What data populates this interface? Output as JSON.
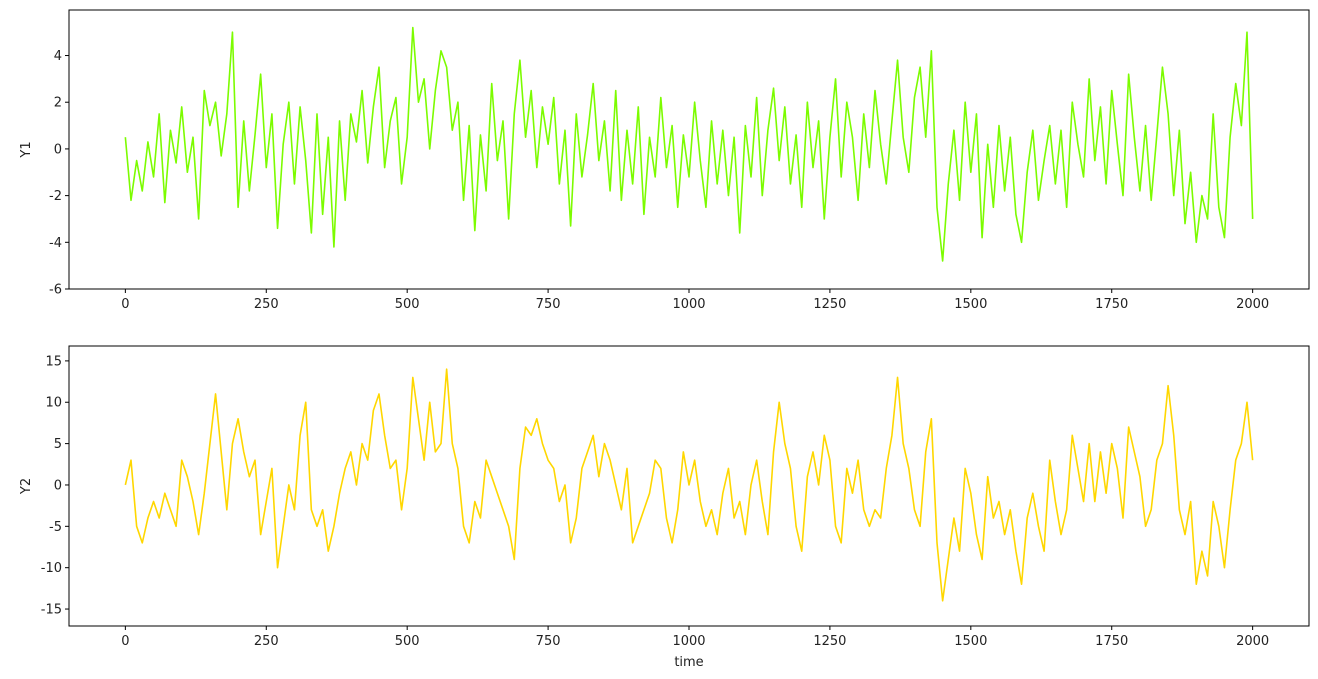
{
  "chart_data": [
    {
      "type": "line",
      "ylabel": "Y1",
      "color": "#7cfc00",
      "xlim": [
        -100,
        2100
      ],
      "ylim": [
        -6.0,
        5.95
      ],
      "xticks": [
        0,
        250,
        500,
        750,
        1000,
        1250,
        1500,
        1750,
        2000
      ],
      "yticks": [
        -6,
        -4,
        -2,
        0,
        2,
        4
      ],
      "x": [
        0,
        10,
        20,
        30,
        40,
        50,
        60,
        70,
        80,
        90,
        100,
        110,
        120,
        130,
        140,
        150,
        160,
        170,
        180,
        190,
        200,
        210,
        220,
        230,
        240,
        250,
        260,
        270,
        280,
        290,
        300,
        310,
        320,
        330,
        340,
        350,
        360,
        370,
        380,
        390,
        400,
        410,
        420,
        430,
        440,
        450,
        460,
        470,
        480,
        490,
        500,
        510,
        520,
        530,
        540,
        550,
        560,
        570,
        580,
        590,
        600,
        610,
        620,
        630,
        640,
        650,
        660,
        670,
        680,
        690,
        700,
        710,
        720,
        730,
        740,
        750,
        760,
        770,
        780,
        790,
        800,
        810,
        820,
        830,
        840,
        850,
        860,
        870,
        880,
        890,
        900,
        910,
        920,
        930,
        940,
        950,
        960,
        970,
        980,
        990,
        1000,
        1010,
        1020,
        1030,
        1040,
        1050,
        1060,
        1070,
        1080,
        1090,
        1100,
        1110,
        1120,
        1130,
        1140,
        1150,
        1160,
        1170,
        1180,
        1190,
        1200,
        1210,
        1220,
        1230,
        1240,
        1250,
        1260,
        1270,
        1280,
        1290,
        1300,
        1310,
        1320,
        1330,
        1340,
        1350,
        1360,
        1370,
        1380,
        1390,
        1400,
        1410,
        1420,
        1430,
        1440,
        1450,
        1460,
        1470,
        1480,
        1490,
        1500,
        1510,
        1520,
        1530,
        1540,
        1550,
        1560,
        1570,
        1580,
        1590,
        1600,
        1610,
        1620,
        1630,
        1640,
        1650,
        1660,
        1670,
        1680,
        1690,
        1700,
        1710,
        1720,
        1730,
        1740,
        1750,
        1760,
        1770,
        1780,
        1790,
        1800,
        1810,
        1820,
        1830,
        1840,
        1850,
        1860,
        1870,
        1880,
        1890,
        1900,
        1910,
        1920,
        1930,
        1940,
        1950,
        1960,
        1970,
        1980,
        1990,
        2000
      ],
      "values": [
        0.5,
        -2.2,
        -0.5,
        -1.8,
        0.3,
        -1.2,
        1.5,
        -2.3,
        0.8,
        -0.6,
        1.8,
        -1.0,
        0.5,
        -3.0,
        2.5,
        1.0,
        2.0,
        -0.3,
        1.5,
        5.0,
        -2.5,
        1.2,
        -1.8,
        0.6,
        3.2,
        -0.8,
        1.5,
        -3.4,
        0.2,
        2.0,
        -1.5,
        1.8,
        -0.5,
        -3.6,
        1.5,
        -2.8,
        0.5,
        -4.2,
        1.2,
        -2.2,
        1.5,
        0.3,
        2.5,
        -0.6,
        1.8,
        3.5,
        -0.8,
        1.2,
        2.2,
        -1.5,
        0.5,
        5.2,
        2.0,
        3.0,
        0.0,
        2.5,
        4.2,
        3.5,
        0.8,
        2.0,
        -2.2,
        1.0,
        -3.5,
        0.6,
        -1.8,
        2.8,
        -0.5,
        1.2,
        -3.0,
        1.5,
        3.8,
        0.5,
        2.5,
        -0.8,
        1.8,
        0.2,
        2.2,
        -1.5,
        0.8,
        -3.3,
        1.5,
        -1.2,
        0.6,
        2.8,
        -0.5,
        1.2,
        -1.8,
        2.5,
        -2.2,
        0.8,
        -1.5,
        1.8,
        -2.8,
        0.5,
        -1.2,
        2.2,
        -0.8,
        1.0,
        -2.5,
        0.6,
        -1.2,
        2.0,
        -0.5,
        -2.5,
        1.2,
        -1.5,
        0.8,
        -2.0,
        0.5,
        -3.6,
        1.0,
        -1.2,
        2.2,
        -2.0,
        0.8,
        2.6,
        -0.5,
        1.8,
        -1.5,
        0.6,
        -2.5,
        2.0,
        -0.8,
        1.2,
        -3.0,
        0.5,
        3.0,
        -1.2,
        2.0,
        0.5,
        -2.2,
        1.5,
        -0.8,
        2.5,
        0.2,
        -1.5,
        1.2,
        3.8,
        0.5,
        -1.0,
        2.2,
        3.5,
        0.5,
        4.2,
        -2.5,
        -4.8,
        -1.5,
        0.8,
        -2.2,
        2.0,
        -1.0,
        1.5,
        -3.8,
        0.2,
        -2.5,
        1.0,
        -1.8,
        0.5,
        -2.8,
        -4.0,
        -1.0,
        0.8,
        -2.2,
        -0.5,
        1.0,
        -1.5,
        0.8,
        -2.5,
        2.0,
        0.2,
        -1.2,
        3.0,
        -0.5,
        1.8,
        -1.5,
        2.5,
        0.2,
        -2.0,
        3.2,
        0.5,
        -1.8,
        1.0,
        -2.2,
        0.6,
        3.5,
        1.5,
        -2.0,
        0.8,
        -3.2,
        -1.0,
        -4.0,
        -2.0,
        -3.0,
        1.5,
        -2.5,
        -3.8,
        0.5,
        2.8,
        1.0,
        5.0,
        -3.0
      ]
    },
    {
      "type": "line",
      "ylabel": "Y2",
      "xlabel": "time",
      "color": "#ffd700",
      "xlim": [
        -100,
        2100
      ],
      "ylim": [
        -17.05,
        16.8
      ],
      "xticks": [
        0,
        250,
        500,
        750,
        1000,
        1250,
        1500,
        1750,
        2000
      ],
      "yticks": [
        -15,
        -10,
        -5,
        0,
        5,
        10,
        15
      ],
      "x": [
        0,
        10,
        20,
        30,
        40,
        50,
        60,
        70,
        80,
        90,
        100,
        110,
        120,
        130,
        140,
        150,
        160,
        170,
        180,
        190,
        200,
        210,
        220,
        230,
        240,
        250,
        260,
        270,
        280,
        290,
        300,
        310,
        320,
        330,
        340,
        350,
        360,
        370,
        380,
        390,
        400,
        410,
        420,
        430,
        440,
        450,
        460,
        470,
        480,
        490,
        500,
        510,
        520,
        530,
        540,
        550,
        560,
        570,
        580,
        590,
        600,
        610,
        620,
        630,
        640,
        650,
        660,
        670,
        680,
        690,
        700,
        710,
        720,
        730,
        740,
        750,
        760,
        770,
        780,
        790,
        800,
        810,
        820,
        830,
        840,
        850,
        860,
        870,
        880,
        890,
        900,
        910,
        920,
        930,
        940,
        950,
        960,
        970,
        980,
        990,
        1000,
        1010,
        1020,
        1030,
        1040,
        1050,
        1060,
        1070,
        1080,
        1090,
        1100,
        1110,
        1120,
        1130,
        1140,
        1150,
        1160,
        1170,
        1180,
        1190,
        1200,
        1210,
        1220,
        1230,
        1240,
        1250,
        1260,
        1270,
        1280,
        1290,
        1300,
        1310,
        1320,
        1330,
        1340,
        1350,
        1360,
        1370,
        1380,
        1390,
        1400,
        1410,
        1420,
        1430,
        1440,
        1450,
        1460,
        1470,
        1480,
        1490,
        1500,
        1510,
        1520,
        1530,
        1540,
        1550,
        1560,
        1570,
        1580,
        1590,
        1600,
        1610,
        1620,
        1630,
        1640,
        1650,
        1660,
        1670,
        1680,
        1690,
        1700,
        1710,
        1720,
        1730,
        1740,
        1750,
        1760,
        1770,
        1780,
        1790,
        1800,
        1810,
        1820,
        1830,
        1840,
        1850,
        1860,
        1870,
        1880,
        1890,
        1900,
        1910,
        1920,
        1930,
        1940,
        1950,
        1960,
        1970,
        1980,
        1990,
        2000
      ],
      "values": [
        0,
        3,
        -5,
        -7,
        -4,
        -2,
        -4,
        -1,
        -3,
        -5,
        3,
        1,
        -2,
        -6,
        -1,
        5,
        11,
        4,
        -3,
        5,
        8,
        4,
        1,
        3,
        -6,
        -2,
        2,
        -10,
        -5,
        0,
        -3,
        6,
        10,
        -3,
        -5,
        -3,
        -8,
        -5,
        -1,
        2,
        4,
        0,
        5,
        3,
        9,
        11,
        6,
        2,
        3,
        -3,
        2,
        13,
        8,
        3,
        10,
        4,
        5,
        14,
        5,
        2,
        -5,
        -7,
        -2,
        -4,
        3,
        1,
        -1,
        -3,
        -5,
        -9,
        2,
        7,
        6,
        8,
        5,
        3,
        2,
        -2,
        0,
        -7,
        -4,
        2,
        4,
        6,
        1,
        5,
        3,
        0,
        -3,
        2,
        -7,
        -5,
        -3,
        -1,
        3,
        2,
        -4,
        -7,
        -3,
        4,
        0,
        3,
        -2,
        -5,
        -3,
        -6,
        -1,
        2,
        -4,
        -2,
        -6,
        0,
        3,
        -2,
        -6,
        4,
        10,
        5,
        2,
        -5,
        -8,
        1,
        4,
        0,
        6,
        3,
        -5,
        -7,
        2,
        -1,
        3,
        -3,
        -5,
        -3,
        -4,
        2,
        6,
        13,
        5,
        2,
        -3,
        -5,
        4,
        8,
        -7,
        -14,
        -9,
        -4,
        -8,
        2,
        -1,
        -6,
        -9,
        1,
        -4,
        -2,
        -6,
        -3,
        -8,
        -12,
        -4,
        -1,
        -5,
        -8,
        3,
        -2,
        -6,
        -3,
        6,
        2,
        -2,
        5,
        -2,
        4,
        -1,
        5,
        2,
        -4,
        7,
        4,
        1,
        -5,
        -3,
        3,
        5,
        12,
        6,
        -3,
        -6,
        -2,
        -12,
        -8,
        -11,
        -2,
        -5,
        -10,
        -3,
        3,
        5,
        10,
        3
      ]
    }
  ]
}
